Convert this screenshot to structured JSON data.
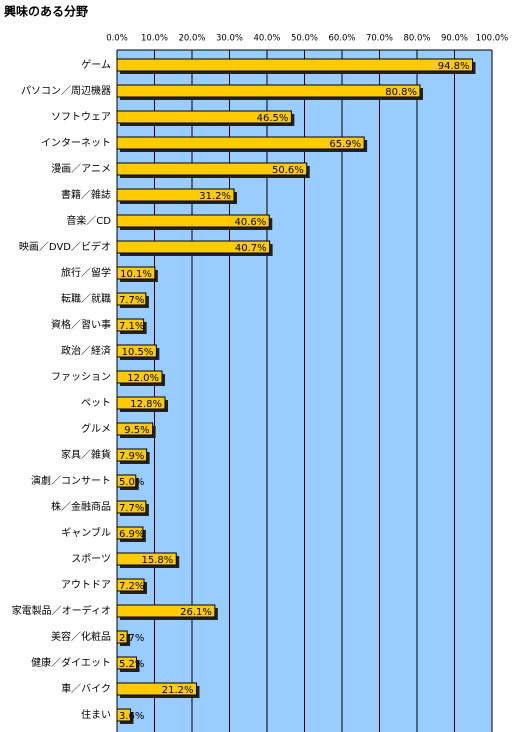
{
  "chart_data": {
    "type": "bar",
    "orientation": "horizontal",
    "title": "興味のある分野",
    "categories": [
      "ゲーム",
      "パソコン／周辺機器",
      "ソフトウェア",
      "インターネット",
      "漫画／アニメ",
      "書籍／雑誌",
      "音楽／CD",
      "映画／DVD／ビデオ",
      "旅行／留学",
      "転職／就職",
      "資格／習い事",
      "政治／経済",
      "ファッション",
      "ペット",
      "グルメ",
      "家具／雑貨",
      "演劇／コンサート",
      "株／金融商品",
      "ギャンブル",
      "スポーツ",
      "アウトドア",
      "家電製品／オーディオ",
      "美容／化粧品",
      "健康／ダイエット",
      "車／バイク",
      "住まい"
    ],
    "values": [
      94.8,
      80.8,
      46.5,
      65.9,
      50.6,
      31.2,
      40.6,
      40.7,
      10.1,
      7.7,
      7.1,
      10.5,
      12.0,
      12.8,
      9.5,
      7.9,
      5.0,
      7.7,
      6.9,
      15.8,
      7.2,
      26.1,
      2.7,
      5.2,
      21.2,
      3.6
    ],
    "value_labels": [
      "94.8%",
      "80.8%",
      "46.5%",
      "65.9%",
      "50.6%",
      "31.2%",
      "40.6%",
      "40.7%",
      "10.1%",
      "7.7%",
      "7.1%",
      "10.5%",
      "12.0%",
      "12.8%",
      "9.5%",
      "7.9%",
      "5.0%",
      "7.7%",
      "6.9%",
      "15.8%",
      "7.2%",
      "26.1%",
      "2.7%",
      "5.2%",
      "21.2%",
      "3.6%"
    ],
    "color": "#ffcc00",
    "xlim": [
      0,
      100
    ],
    "xticks": [
      {
        "value": 0,
        "label": "0.0%"
      },
      {
        "value": 10,
        "label": "10.0%"
      },
      {
        "value": 20,
        "label": "20.0%"
      },
      {
        "value": 30,
        "label": "30.0%"
      },
      {
        "value": 40,
        "label": "40.0%"
      },
      {
        "value": 50,
        "label": "50.0%"
      },
      {
        "value": 60,
        "label": "60.0%"
      },
      {
        "value": 70,
        "label": "70.0%"
      },
      {
        "value": 80,
        "label": "80.0%"
      },
      {
        "value": 90,
        "label": "90.0%"
      },
      {
        "value": 100,
        "label": "100.0%"
      }
    ],
    "grid": true
  }
}
